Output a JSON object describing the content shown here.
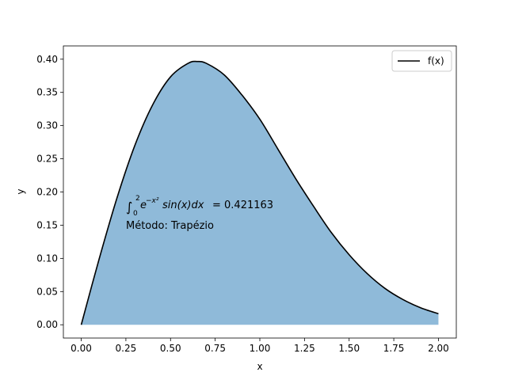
{
  "chart_data": {
    "type": "area",
    "title": "",
    "xlabel": "x",
    "ylabel": "y",
    "xlim": [
      -0.1,
      2.1
    ],
    "ylim": [
      -0.02,
      0.42
    ],
    "xticks": [
      "0.00",
      "0.25",
      "0.50",
      "0.75",
      "1.00",
      "1.25",
      "1.50",
      "1.75",
      "2.00"
    ],
    "yticks": [
      "0.00",
      "0.05",
      "0.10",
      "0.15",
      "0.20",
      "0.25",
      "0.30",
      "0.35",
      "0.40"
    ],
    "grid": false,
    "legend": {
      "placement": "top-right",
      "entries": [
        "f(x)"
      ]
    },
    "series": [
      {
        "name": "f(x)",
        "color": "#000000",
        "fill_color": "#8fbad9",
        "x": [
          0.0,
          0.1,
          0.2,
          0.3,
          0.4,
          0.5,
          0.6,
          0.65,
          0.7,
          0.8,
          0.9,
          1.0,
          1.1,
          1.2,
          1.3,
          1.4,
          1.5,
          1.6,
          1.7,
          1.8,
          1.9,
          2.0
        ],
        "y": [
          0.0,
          0.0988,
          0.1909,
          0.27,
          0.3313,
          0.3734,
          0.394,
          0.3965,
          0.3938,
          0.3765,
          0.346,
          0.3096,
          0.2651,
          0.2204,
          0.1787,
          0.139,
          0.1055,
          0.0774,
          0.0549,
          0.0382,
          0.0256,
          0.0166
        ]
      }
    ],
    "annotation": {
      "integral_lower": "0",
      "integral_upper": "2",
      "integrand_base": "e",
      "integrand_exponent": "−x²",
      "integrand_rest": "sin(x)dx",
      "result": "= 0.421163",
      "method": "Método: Trapézio"
    }
  }
}
